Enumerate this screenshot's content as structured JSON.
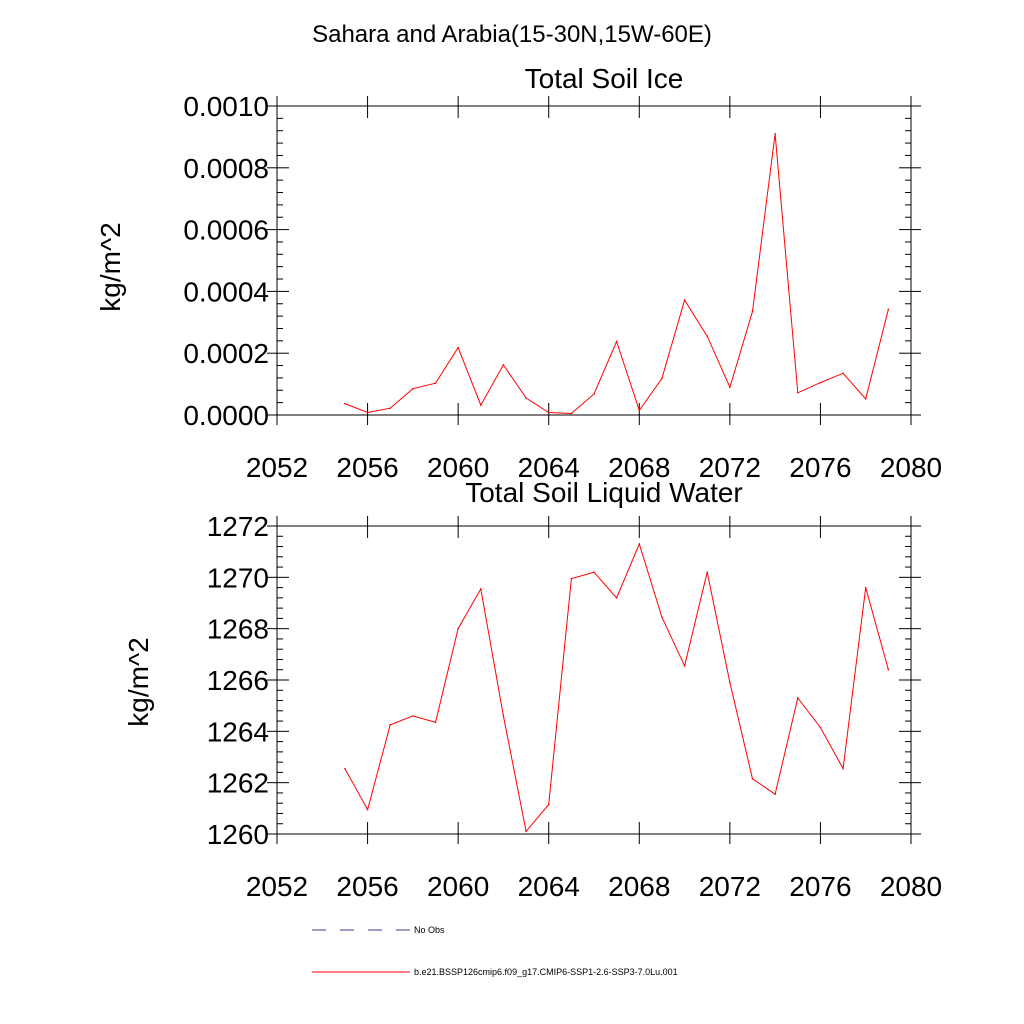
{
  "figure": {
    "main_title": "Sahara and Arabia(15-30N,15W-60E)"
  },
  "colors": {
    "series_line": "#ff0000",
    "obs_line": "#3a3a8c",
    "axis": "#000000",
    "background": "#ffffff"
  },
  "legend": {
    "placement": "bottom",
    "obs_label": "No Obs",
    "model_label": "b.e21.BSSP126cmip6.f09_g17.CMIP6-SSP1-2.6-SSP3-7.0Lu.001"
  },
  "chart_data": [
    {
      "type": "line",
      "title": "Total Soil Ice",
      "xlabel": "",
      "ylabel": "kg/m^2",
      "xlim": [
        2052,
        2080
      ],
      "ylim": [
        0,
        0.001
      ],
      "xticks": [
        2052,
        2056,
        2060,
        2064,
        2068,
        2072,
        2076,
        2080
      ],
      "xtick_labels": [
        "2052",
        "2056",
        "2060",
        "2064",
        "2068",
        "2072",
        "2076",
        "2080"
      ],
      "yticks": [
        0,
        0.0002,
        0.0004,
        0.0006,
        0.0008,
        0.001
      ],
      "ytick_labels": [
        "0.0000",
        "0.0002",
        "0.0004",
        "0.0006",
        "0.0008",
        "0.0010"
      ],
      "grid": false,
      "x": [
        2055,
        2056,
        2057,
        2058,
        2059,
        2060,
        2061,
        2062,
        2063,
        2064,
        2065,
        2066,
        2067,
        2068,
        2069,
        2070,
        2071,
        2072,
        2073,
        2074,
        2075,
        2076,
        2077,
        2078,
        2079
      ],
      "series": [
        {
          "values": [
            3.7e-05,
            8e-06,
            2.2e-05,
            8.5e-05,
            0.000103,
            0.000218,
            3.2e-05,
            0.000162,
            5.5e-05,
            8e-06,
            5e-06,
            6.8e-05,
            0.000238,
            1.5e-05,
            0.000118,
            0.000372,
            0.000255,
            9e-05,
            0.000335,
            0.00091,
            7.2e-05,
            0.000105,
            0.000135,
            5.2e-05,
            0.000342
          ]
        }
      ]
    },
    {
      "type": "line",
      "title": "Total Soil Liquid Water",
      "xlabel": "",
      "ylabel": "kg/m^2",
      "xlim": [
        2052,
        2080
      ],
      "ylim": [
        1260,
        1272
      ],
      "xticks": [
        2052,
        2056,
        2060,
        2064,
        2068,
        2072,
        2076,
        2080
      ],
      "xtick_labels": [
        "2052",
        "2056",
        "2060",
        "2064",
        "2068",
        "2072",
        "2076",
        "2080"
      ],
      "yticks": [
        1260,
        1262,
        1264,
        1266,
        1268,
        1270,
        1272
      ],
      "ytick_labels": [
        "1260",
        "1262",
        "1264",
        "1266",
        "1268",
        "1270",
        "1272"
      ],
      "grid": false,
      "x": [
        2055,
        2056,
        2057,
        2058,
        2059,
        2060,
        2061,
        2062,
        2063,
        2064,
        2065,
        2066,
        2067,
        2068,
        2069,
        2070,
        2071,
        2072,
        2073,
        2074,
        2075,
        2076,
        2077,
        2078,
        2079
      ],
      "series": [
        {
          "values": [
            1262.55,
            1260.95,
            1264.25,
            1264.6,
            1264.35,
            1268.0,
            1269.55,
            1264.6,
            1260.1,
            1261.15,
            1269.95,
            1270.2,
            1269.2,
            1271.3,
            1268.45,
            1266.55,
            1270.2,
            1265.9,
            1262.15,
            1261.55,
            1265.3,
            1264.15,
            1262.55,
            1269.6,
            1266.4
          ]
        }
      ]
    }
  ]
}
